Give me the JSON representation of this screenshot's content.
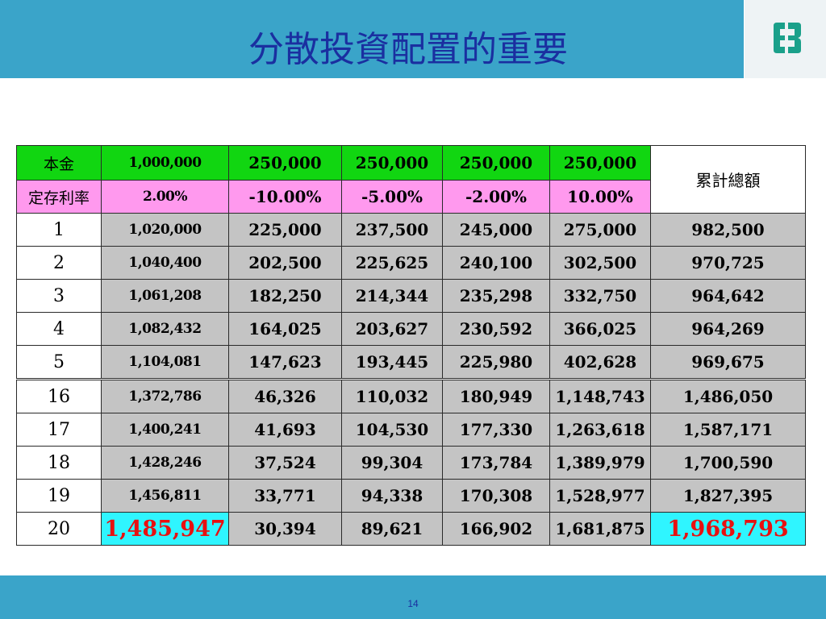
{
  "slide": {
    "title": "分散投資配置的重要",
    "page_number": "14"
  },
  "colors": {
    "header_blue": "#3aa4c9",
    "title_blue": "#1a2fa0",
    "principal_green": "#11d611",
    "rate_pink": "#ff99ee",
    "row_gray": "#c4c4c4",
    "final_cyan": "#2ff5ff",
    "final_red": "#e81010"
  },
  "table": {
    "principal_label": "本金",
    "rate_label": "定存利率",
    "total_label": "累計總額",
    "principal": [
      "1,000,000",
      "250,000",
      "250,000",
      "250,000",
      "250,000"
    ],
    "rates": [
      "2.00%",
      "-10.00%",
      "-5.00%",
      "-2.00%",
      "10.00%"
    ],
    "rows": [
      {
        "year": "1",
        "cells": [
          "1,020,000",
          "225,000",
          "237,500",
          "245,000",
          "275,000"
        ],
        "total": "982,500"
      },
      {
        "year": "2",
        "cells": [
          "1,040,400",
          "202,500",
          "225,625",
          "240,100",
          "302,500"
        ],
        "total": "970,725"
      },
      {
        "year": "3",
        "cells": [
          "1,061,208",
          "182,250",
          "214,344",
          "235,298",
          "332,750"
        ],
        "total": "964,642"
      },
      {
        "year": "4",
        "cells": [
          "1,082,432",
          "164,025",
          "203,627",
          "230,592",
          "366,025"
        ],
        "total": "964,269"
      },
      {
        "year": "5",
        "cells": [
          "1,104,081",
          "147,623",
          "193,445",
          "225,980",
          "402,628"
        ],
        "total": "969,675"
      },
      {
        "year": "16",
        "cells": [
          "1,372,786",
          "46,326",
          "110,032",
          "180,949",
          "1,148,743"
        ],
        "total": "1,486,050"
      },
      {
        "year": "17",
        "cells": [
          "1,400,241",
          "41,693",
          "104,530",
          "177,330",
          "1,263,618"
        ],
        "total": "1,587,171"
      },
      {
        "year": "18",
        "cells": [
          "1,428,246",
          "37,524",
          "99,304",
          "173,784",
          "1,389,979"
        ],
        "total": "1,700,590"
      },
      {
        "year": "19",
        "cells": [
          "1,456,811",
          "33,771",
          "94,338",
          "170,308",
          "1,528,977"
        ],
        "total": "1,827,395"
      },
      {
        "year": "20",
        "cells": [
          "1,485,947",
          "30,394",
          "89,621",
          "166,902",
          "1,681,875"
        ],
        "total": "1,968,793"
      }
    ]
  }
}
